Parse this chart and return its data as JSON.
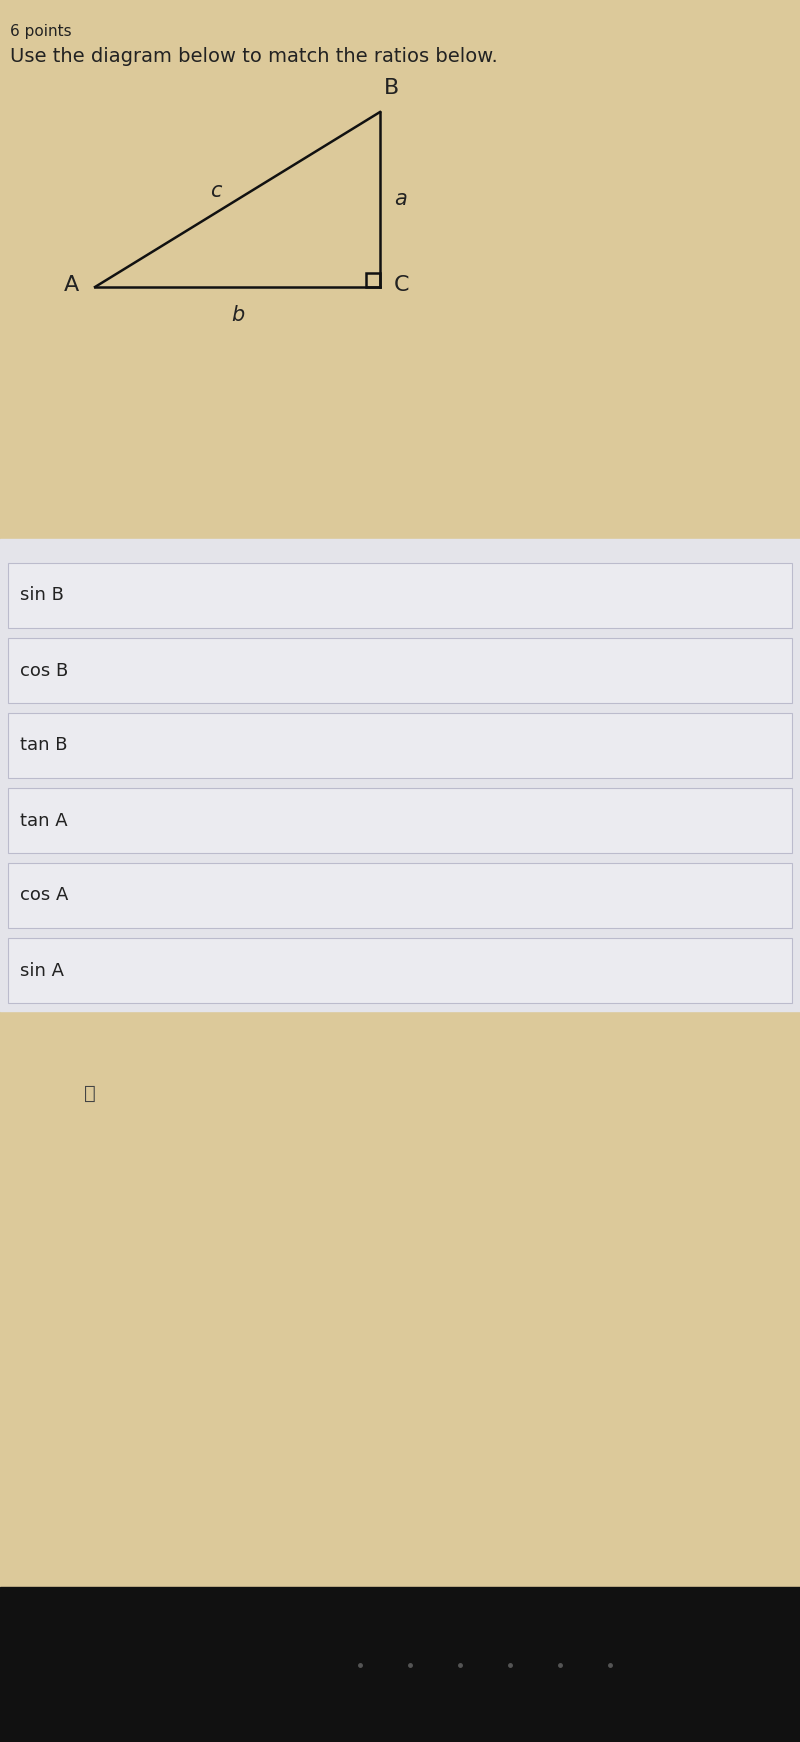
{
  "title_points": "6 points",
  "subtitle": "Use the diagram below to match the ratios below.",
  "bg_color_top": "#dcc99a",
  "bg_color_rows": "#e4e4ea",
  "bg_color_dark": "#111111",
  "rows": [
    {
      "label": "sin B"
    },
    {
      "label": "cos B"
    },
    {
      "label": "tan B"
    },
    {
      "label": "tan A"
    },
    {
      "label": "cos A"
    },
    {
      "label": "sin A"
    }
  ],
  "row_bg": "#e8e8ee",
  "row_border": "#c8c8cc",
  "text_color": "#222222",
  "title_fontsize": 11,
  "subtitle_fontsize": 14,
  "row_fontsize": 13,
  "tri_label_fontsize": 16,
  "tri_side_label_fontsize": 15
}
